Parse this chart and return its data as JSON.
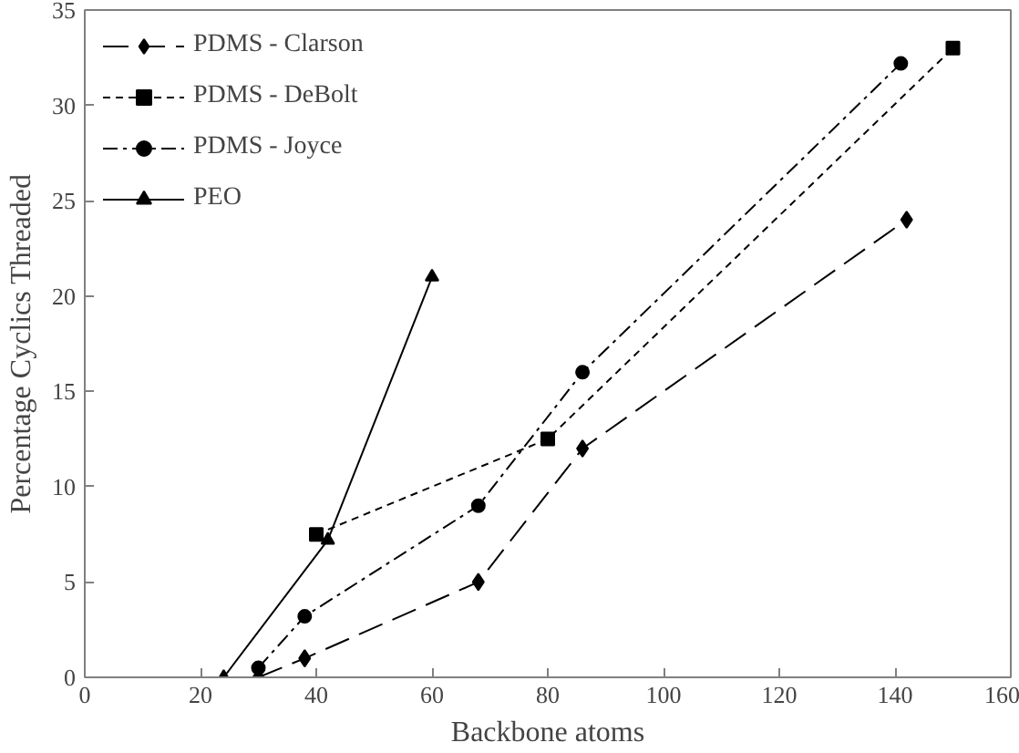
{
  "chart_data": {
    "type": "line",
    "xlabel": "Backbone atoms",
    "ylabel": "Percentage Cyclics Threaded",
    "xlim": [
      0,
      160
    ],
    "xticks": [
      0,
      20,
      40,
      60,
      80,
      100,
      120,
      140,
      160
    ],
    "ylim": [
      0,
      35
    ],
    "yticks": [
      0,
      5,
      10,
      15,
      20,
      25,
      30,
      35
    ],
    "grid": false,
    "legend": "top left",
    "series": [
      {
        "name": "PDMS - Clarson",
        "color": "#000000",
        "marker": "diamond",
        "line_style": "longdash",
        "x": [
          30,
          38,
          68,
          86,
          142
        ],
        "values": [
          0,
          1,
          5,
          12,
          24
        ]
      },
      {
        "name": "PDMS - DeBolt",
        "color": "#000000",
        "marker": "square",
        "line_style": "dashed",
        "x": [
          40,
          80,
          150
        ],
        "values": [
          7.5,
          12.5,
          33
        ]
      },
      {
        "name": "PDMS - Joyce",
        "color": "#000000",
        "marker": "circle",
        "line_style": "dashdot",
        "x": [
          30,
          38,
          68,
          86,
          141
        ],
        "values": [
          0.5,
          3.2,
          9,
          16,
          32.2
        ]
      },
      {
        "name": "PEO",
        "color": "#000000",
        "marker": "triangle",
        "line_style": "solid",
        "x": [
          24,
          42,
          60
        ],
        "values": [
          0,
          7.2,
          21
        ]
      }
    ]
  }
}
